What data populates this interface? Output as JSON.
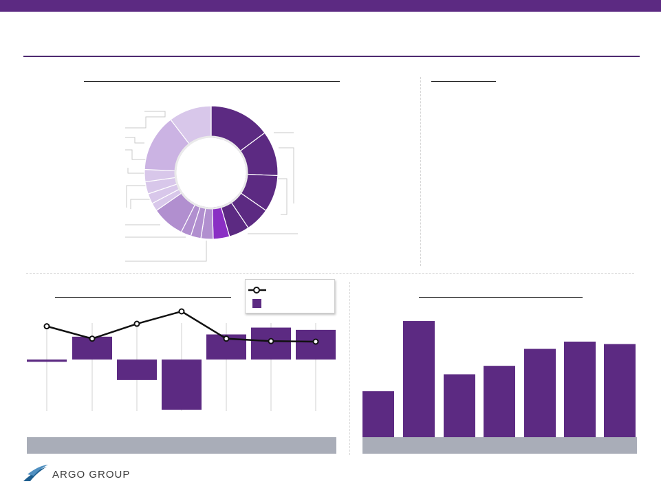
{
  "colors": {
    "brand": "#5c2a82",
    "rule": "#4e2a70",
    "footer_band": "#a9adb8",
    "connector": "#c9c9c9",
    "trend_line": "#111111",
    "logo_blue": "#1d5e8f"
  },
  "logo": {
    "text": "ARGO GROUP",
    "icon": "argo-sail-logo-icon"
  },
  "chart_data": [
    {
      "type": "pie",
      "donut": true,
      "segment_count": 16,
      "values": [
        15,
        11,
        9,
        6,
        5,
        4,
        3,
        2.5,
        2.5,
        8,
        2,
        2.5,
        3,
        3,
        14,
        10.5
      ],
      "colors": [
        "#5c2a82",
        "#5c2a82",
        "#5c2a82",
        "#5c2a82",
        "#5c2a82",
        "#8a2fc4",
        "#b18fcf",
        "#b18fcf",
        "#b18fcf",
        "#b18fcf",
        "#d8c7ea",
        "#d8c7ea",
        "#d8c7ea",
        "#d8c7ea",
        "#cbb3e3",
        "#d8c7ea"
      ]
    },
    {
      "type": "bar",
      "overlay_line": true,
      "category_count": 7,
      "bar_values": [
        -1,
        10,
        -9,
        -22,
        11,
        14,
        13
      ],
      "line_values": [
        14,
        9,
        15,
        20,
        9,
        8,
        7.8
      ],
      "bar_range": [
        -22,
        14
      ],
      "line_range": [
        7.8,
        20
      ],
      "bar_color": "#5c2a82",
      "line_color": "#111111"
    },
    {
      "type": "bar",
      "category_count": 7,
      "values": [
        38,
        96,
        52,
        59,
        73,
        79,
        77
      ],
      "ylim": [
        0,
        100
      ],
      "bar_color": "#5c2a82"
    }
  ]
}
